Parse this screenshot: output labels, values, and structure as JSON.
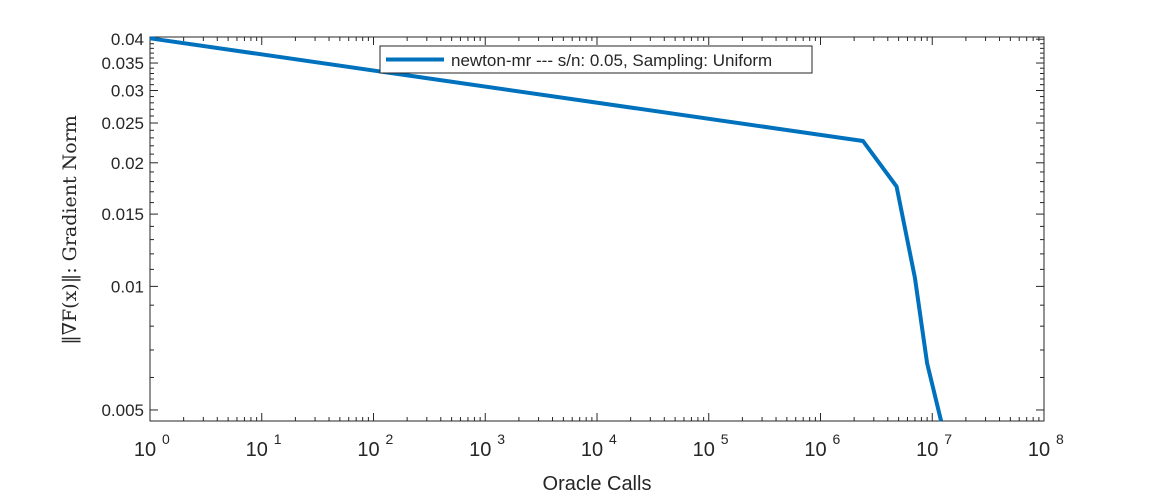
{
  "chart_data": {
    "type": "line",
    "xscale": "log",
    "yscale": "log",
    "xlim": [
      1,
      100000000
    ],
    "ylim": [
      0.0047,
      0.0405
    ],
    "xlabel": "Oracle Calls",
    "ylabel": "‖∇F(x)‖: Gradient Norm",
    "x_ticks": [
      {
        "value": 1,
        "base": "10",
        "exp": "0"
      },
      {
        "value": 10,
        "base": "10",
        "exp": "1"
      },
      {
        "value": 100,
        "base": "10",
        "exp": "2"
      },
      {
        "value": 1000,
        "base": "10",
        "exp": "3"
      },
      {
        "value": 10000,
        "base": "10",
        "exp": "4"
      },
      {
        "value": 100000,
        "base": "10",
        "exp": "5"
      },
      {
        "value": 1000000,
        "base": "10",
        "exp": "6"
      },
      {
        "value": 10000000,
        "base": "10",
        "exp": "7"
      },
      {
        "value": 100000000,
        "base": "10",
        "exp": "8"
      }
    ],
    "y_ticks": [
      {
        "value": 0.005,
        "label": "0.005"
      },
      {
        "value": 0.01,
        "label": "0.01"
      },
      {
        "value": 0.015,
        "label": "0.015"
      },
      {
        "value": 0.02,
        "label": "0.02"
      },
      {
        "value": 0.025,
        "label": "0.025"
      },
      {
        "value": 0.03,
        "label": "0.03"
      },
      {
        "value": 0.035,
        "label": "0.035"
      },
      {
        "value": 0.04,
        "label": "0.04"
      }
    ],
    "series": [
      {
        "name": "newton-mr --- s/n: 0.05, Sampling: Uniform",
        "color": "#0072BD",
        "x": [
          1,
          2400000,
          4800000,
          7000000,
          9000000,
          12000000
        ],
        "y": [
          0.0402,
          0.0226,
          0.0175,
          0.0105,
          0.0065,
          0.0047
        ]
      }
    ],
    "legend": "top-center",
    "grid": false
  }
}
